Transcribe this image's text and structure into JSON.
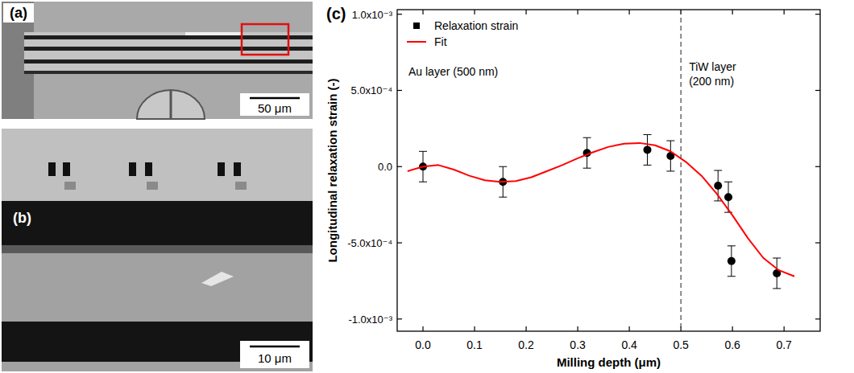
{
  "figure": {
    "panels": [
      {
        "label": "(a)",
        "scale_bar": "50 μm"
      },
      {
        "label": "(b)",
        "scale_bar": "10 μm"
      }
    ]
  },
  "chart_data": {
    "type": "scatter",
    "panel": "(c)",
    "x_label": "Milling depth (μm)",
    "y_label": "Longitudinal relaxation strain (-)",
    "xlim": [
      -0.05,
      0.77
    ],
    "ylim": [
      -0.00108,
      0.00103
    ],
    "xticks": [
      {
        "value": 0,
        "label": "0.0"
      },
      {
        "value": 0.1,
        "label": "0.1"
      },
      {
        "value": 0.2,
        "label": "0.2"
      },
      {
        "value": 0.3,
        "label": "0.3"
      },
      {
        "value": 0.4,
        "label": "0.4"
      },
      {
        "value": 0.5,
        "label": "0.5"
      },
      {
        "value": 0.6,
        "label": "0.6"
      },
      {
        "value": 0.7,
        "label": "0.7"
      }
    ],
    "yticks": [
      {
        "value": -0.001,
        "label": "-1.0x10⁻³"
      },
      {
        "value": -0.0005,
        "label": "-5.0x10⁻⁴"
      },
      {
        "value": 0,
        "label": "0.0"
      },
      {
        "value": 0.0005,
        "label": "5.0x10⁻⁴"
      },
      {
        "value": 0.001,
        "label": "1.0x10⁻³"
      }
    ],
    "legend": "top-left",
    "annotations": [
      {
        "text": "Au layer (500 nm)"
      },
      {
        "text": "TiW layer (200 nm)"
      }
    ],
    "reference_lines": [
      {
        "x": 0.5,
        "line_style": "dashed"
      }
    ],
    "series": [
      {
        "name": "Relaxation strain",
        "type": "scatter",
        "color": "#000000",
        "marker": "circle",
        "x": [
          0.0,
          0.155,
          0.318,
          0.435,
          0.48,
          0.572,
          0.592,
          0.598,
          0.686
        ],
        "values": [
          0.0,
          -0.0001,
          9e-05,
          0.00011,
          7e-05,
          -0.000125,
          -0.0002,
          -0.00062,
          -0.0007
        ],
        "errors": [
          0.0001,
          0.0001,
          0.0001,
          0.0001,
          0.0001,
          0.0001,
          0.0001,
          0.0001,
          0.0001
        ]
      },
      {
        "name": "Fit",
        "type": "line",
        "color": "#ff0000",
        "line_style": "solid",
        "x": [
          -0.03,
          0.0,
          0.03,
          0.06,
          0.09,
          0.12,
          0.15,
          0.18,
          0.21,
          0.24,
          0.27,
          0.3,
          0.33,
          0.36,
          0.39,
          0.42,
          0.45,
          0.48,
          0.51,
          0.54,
          0.57,
          0.6,
          0.63,
          0.66,
          0.69,
          0.72
        ],
        "values": [
          -3e-05,
          0.0,
          1e-05,
          -2e-05,
          -6e-05,
          -9e-05,
          -0.0001,
          -9.5e-05,
          -7e-05,
          -3e-05,
          1e-05,
          5.5e-05,
          9.5e-05,
          0.00013,
          0.00015,
          0.000155,
          0.00014,
          0.0001,
          3e-05,
          -6e-05,
          -0.00018,
          -0.00032,
          -0.00047,
          -0.0006,
          -0.00068,
          -0.00072
        ]
      }
    ]
  }
}
